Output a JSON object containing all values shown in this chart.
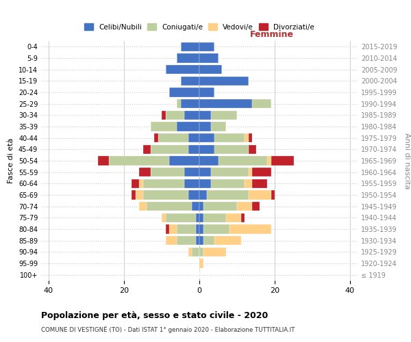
{
  "age_groups": [
    "100+",
    "95-99",
    "90-94",
    "85-89",
    "80-84",
    "75-79",
    "70-74",
    "65-69",
    "60-64",
    "55-59",
    "50-54",
    "45-49",
    "40-44",
    "35-39",
    "30-34",
    "25-29",
    "20-24",
    "15-19",
    "10-14",
    "5-9",
    "0-4"
  ],
  "birth_years": [
    "≤ 1919",
    "1920-1924",
    "1925-1929",
    "1930-1934",
    "1935-1939",
    "1940-1944",
    "1945-1949",
    "1950-1954",
    "1955-1959",
    "1960-1964",
    "1965-1969",
    "1970-1974",
    "1975-1979",
    "1980-1984",
    "1985-1989",
    "1990-1994",
    "1995-1999",
    "2000-2004",
    "2005-2009",
    "2010-2014",
    "2015-2019"
  ],
  "colors": {
    "celibi": "#4472C4",
    "coniugati": "#BFCE9E",
    "vedovi": "#FFD085",
    "divorziati": "#C0212A"
  },
  "males": {
    "celibi": [
      0,
      0,
      0,
      1,
      1,
      1,
      2,
      3,
      4,
      4,
      8,
      3,
      3,
      6,
      4,
      5,
      8,
      5,
      9,
      6,
      5
    ],
    "coniugati": [
      0,
      0,
      2,
      5,
      5,
      8,
      12,
      12,
      11,
      9,
      16,
      10,
      8,
      7,
      5,
      1,
      0,
      0,
      0,
      0,
      0
    ],
    "vedovi": [
      0,
      0,
      1,
      3,
      2,
      1,
      2,
      2,
      1,
      0,
      0,
      0,
      0,
      0,
      0,
      0,
      0,
      0,
      0,
      0,
      0
    ],
    "divorziati": [
      0,
      0,
      0,
      0,
      1,
      0,
      0,
      1,
      2,
      3,
      3,
      2,
      1,
      0,
      1,
      0,
      0,
      0,
      0,
      0,
      0
    ]
  },
  "females": {
    "celibi": [
      0,
      0,
      0,
      1,
      1,
      1,
      1,
      2,
      3,
      3,
      5,
      4,
      4,
      3,
      3,
      14,
      4,
      13,
      6,
      5,
      4
    ],
    "coniugati": [
      0,
      0,
      1,
      3,
      7,
      6,
      9,
      11,
      9,
      10,
      13,
      9,
      8,
      4,
      7,
      5,
      0,
      0,
      0,
      0,
      0
    ],
    "vedovi": [
      0,
      1,
      6,
      7,
      11,
      4,
      4,
      6,
      2,
      1,
      1,
      0,
      1,
      0,
      0,
      0,
      0,
      0,
      0,
      0,
      0
    ],
    "divorziati": [
      0,
      0,
      0,
      0,
      0,
      1,
      2,
      1,
      4,
      5,
      6,
      2,
      1,
      0,
      0,
      0,
      0,
      0,
      0,
      0,
      0
    ]
  },
  "xlim": 42,
  "title_main": "Popolazione per età, sesso e stato civile - 2020",
  "title_sub": "COMUNE DI VESTIGNÉ (TO) - Dati ISTAT 1° gennaio 2020 - Elaborazione TUTTITALIA.IT",
  "xlabel_right": "Femmine",
  "ylabel": "Fasce di età",
  "ylabel_right": "Anni di nascita",
  "legend_labels": [
    "Celibi/Nubili",
    "Coniugati/e",
    "Vedovi/e",
    "Divorziati/e"
  ]
}
